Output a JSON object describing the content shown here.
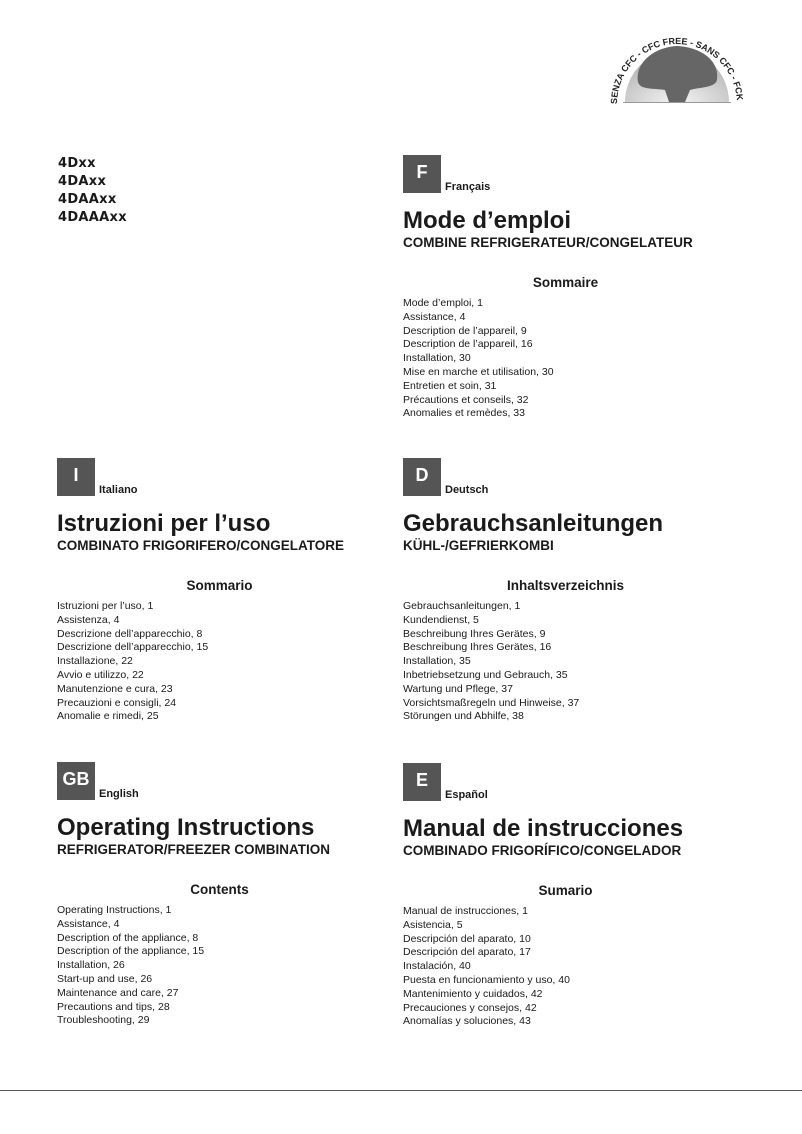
{
  "logo": {
    "text": "SENZA CFC - CFC FREE - SANS CFC - FCKW FREI"
  },
  "models": [
    "4Dxx",
    "4DAxx",
    "4DAAxx",
    "4DAAAxx"
  ],
  "sections": [
    {
      "code": "F",
      "language": "Français",
      "title": "Mode d’emploi",
      "subtitle": "COMBINE REFRIGERATEUR/CONGELATEUR",
      "heading": "Sommaire",
      "items": [
        "Mode d’emploi, 1",
        "Assistance, 4",
        "Description de l’appareil, 9",
        "Description de l’appareil, 16",
        "Installation, 30",
        "Mise en marche et utilisation, 30",
        "Entretien et soin, 31",
        "Précautions et conseils, 32",
        "Anomalies et remèdes, 33"
      ]
    },
    {
      "code": "I",
      "language": "Italiano",
      "title": "Istruzioni per l’uso",
      "subtitle": "COMBINATO FRIGORIFERO/CONGELATORE",
      "heading": "Sommario",
      "items": [
        "Istruzioni per l’uso, 1",
        "Assistenza, 4",
        "Descrizione dell’apparecchio, 8",
        "Descrizione dell’apparecchio, 15",
        "Installazione, 22",
        "Avvio e utilizzo, 22",
        "Manutenzione e cura, 23",
        "Precauzioni e consigli, 24",
        "Anomalie e rimedi, 25"
      ]
    },
    {
      "code": "D",
      "language": "Deutsch",
      "title": "Gebrauchsanleitungen",
      "subtitle": "KÜHL-/GEFRIERKOMBI",
      "heading": "Inhaltsverzeichnis",
      "items": [
        "Gebrauchsanleitungen, 1",
        "Kundendienst, 5",
        "Beschreibung Ihres Gerätes, 9",
        "Beschreibung Ihres Gerätes, 16",
        "Installation, 35",
        "Inbetriebsetzung und Gebrauch, 35",
        "Wartung und Pflege, 37",
        "Vorsichtsmaßregeln und Hinweise, 37",
        "Störungen und Abhilfe, 38"
      ]
    },
    {
      "code": "GB",
      "language": "English",
      "title": "Operating Instructions",
      "subtitle": "REFRIGERATOR/FREEZER COMBINATION",
      "heading": "Contents",
      "items": [
        "Operating Instructions, 1",
        "Assistance, 4",
        "Description of the appliance, 8",
        "Description of the appliance, 15",
        "Installation, 26",
        "Start-up and use, 26",
        "Maintenance and care, 27",
        "Precautions and tips, 28",
        "Troubleshooting, 29"
      ]
    },
    {
      "code": "E",
      "language": "Español",
      "title": "Manual de instrucciones",
      "subtitle": "COMBINADO FRIGORÍFICO/CONGELADOR",
      "heading": "Sumario",
      "items": [
        "Manual de instrucciones, 1",
        "Asistencia, 5",
        "Descripción del aparato, 10",
        "Descripción del aparato, 17",
        "Instalación, 40",
        "Puesta en funcionamiento y uso, 40",
        "Mantenimiento y cuidados, 42",
        "Precauciones y consejos, 42",
        "Anomalías y soluciones, 43"
      ]
    }
  ]
}
